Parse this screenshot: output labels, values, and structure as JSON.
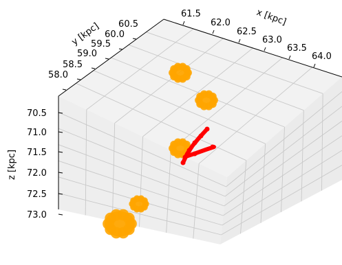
{
  "chart_data": {
    "type": "scatter",
    "projection": "3d",
    "xlabel": "x [kpc]",
    "ylabel": "y [kpc]",
    "zlabel": "z [kpc]",
    "x_ticks": [
      "61.5",
      "62.0",
      "62.5",
      "63.0",
      "63.5",
      "64.0"
    ],
    "y_ticks": [
      "58.0",
      "58.5",
      "59.0",
      "59.5",
      "60.0",
      "60.5"
    ],
    "z_ticks": [
      "70.5",
      "71.0",
      "71.5",
      "72.0",
      "72.5",
      "73.0"
    ],
    "z_axis_inverted": true,
    "grid": true,
    "colors": {
      "clumps": "#ffa500",
      "stream": "#ff0000",
      "pane": "#f2f2f2",
      "grid": "#c8c8c8"
    },
    "clumps": [
      {
        "x": 61.9,
        "y": 59.8,
        "z": 70.3,
        "size": "medium"
      },
      {
        "x": 62.8,
        "y": 59.9,
        "z": 70.5,
        "size": "medium"
      },
      {
        "x": 62.2,
        "y": 59.3,
        "z": 71.45,
        "size": "medium"
      },
      {
        "x": 61.5,
        "y": 58.5,
        "z": 72.6,
        "size": "small"
      },
      {
        "x": 61.3,
        "y": 58.1,
        "z": 72.9,
        "size": "large"
      }
    ],
    "stream": {
      "points": [
        {
          "x": 62.55,
          "y": 59.55,
          "z": 70.85
        },
        {
          "x": 62.45,
          "y": 59.45,
          "z": 71.05
        },
        {
          "x": 62.4,
          "y": 59.35,
          "z": 71.2
        },
        {
          "x": 62.35,
          "y": 59.3,
          "z": 71.35
        },
        {
          "x": 62.4,
          "y": 59.25,
          "z": 71.45
        },
        {
          "x": 62.6,
          "y": 59.3,
          "z": 71.45
        },
        {
          "x": 62.8,
          "y": 59.4,
          "z": 71.35
        },
        {
          "x": 62.35,
          "y": 59.2,
          "z": 71.6
        }
      ]
    }
  }
}
